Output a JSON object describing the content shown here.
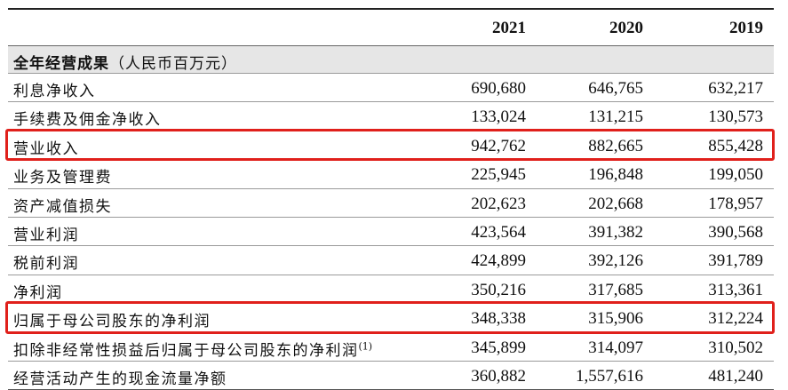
{
  "years": [
    "2021",
    "2020",
    "2019"
  ],
  "section_title": "全年经营成果",
  "section_unit": "（人民币百万元）",
  "rows": [
    {
      "label": "利息净收入",
      "sup": "",
      "values": [
        "690,680",
        "646,765",
        "632,217"
      ]
    },
    {
      "label": "手续费及佣金净收入",
      "sup": "",
      "values": [
        "133,024",
        "131,215",
        "130,573"
      ]
    },
    {
      "label": "营业收入",
      "sup": "",
      "values": [
        "942,762",
        "882,665",
        "855,428"
      ]
    },
    {
      "label": "业务及管理费",
      "sup": "",
      "values": [
        "225,945",
        "196,848",
        "199,050"
      ]
    },
    {
      "label": "资产减值损失",
      "sup": "",
      "values": [
        "202,623",
        "202,668",
        "178,957"
      ]
    },
    {
      "label": "营业利润",
      "sup": "",
      "values": [
        "423,564",
        "391,382",
        "390,568"
      ]
    },
    {
      "label": "税前利润",
      "sup": "",
      "values": [
        "424,899",
        "392,126",
        "391,789"
      ]
    },
    {
      "label": "净利润",
      "sup": "",
      "values": [
        "350,216",
        "317,685",
        "313,361"
      ]
    },
    {
      "label": "归属于母公司股东的净利润",
      "sup": "",
      "values": [
        "348,338",
        "315,906",
        "312,224"
      ]
    },
    {
      "label": "扣除非经常性损益后归属于母公司股东的净利润",
      "sup": "(1)",
      "values": [
        "345,899",
        "314,097",
        "310,502"
      ]
    },
    {
      "label": "经营活动产生的现金流量净额",
      "sup": "",
      "values": [
        "360,882",
        "1,557,616",
        "481,240"
      ]
    }
  ],
  "highlight_color": "#e0201b"
}
